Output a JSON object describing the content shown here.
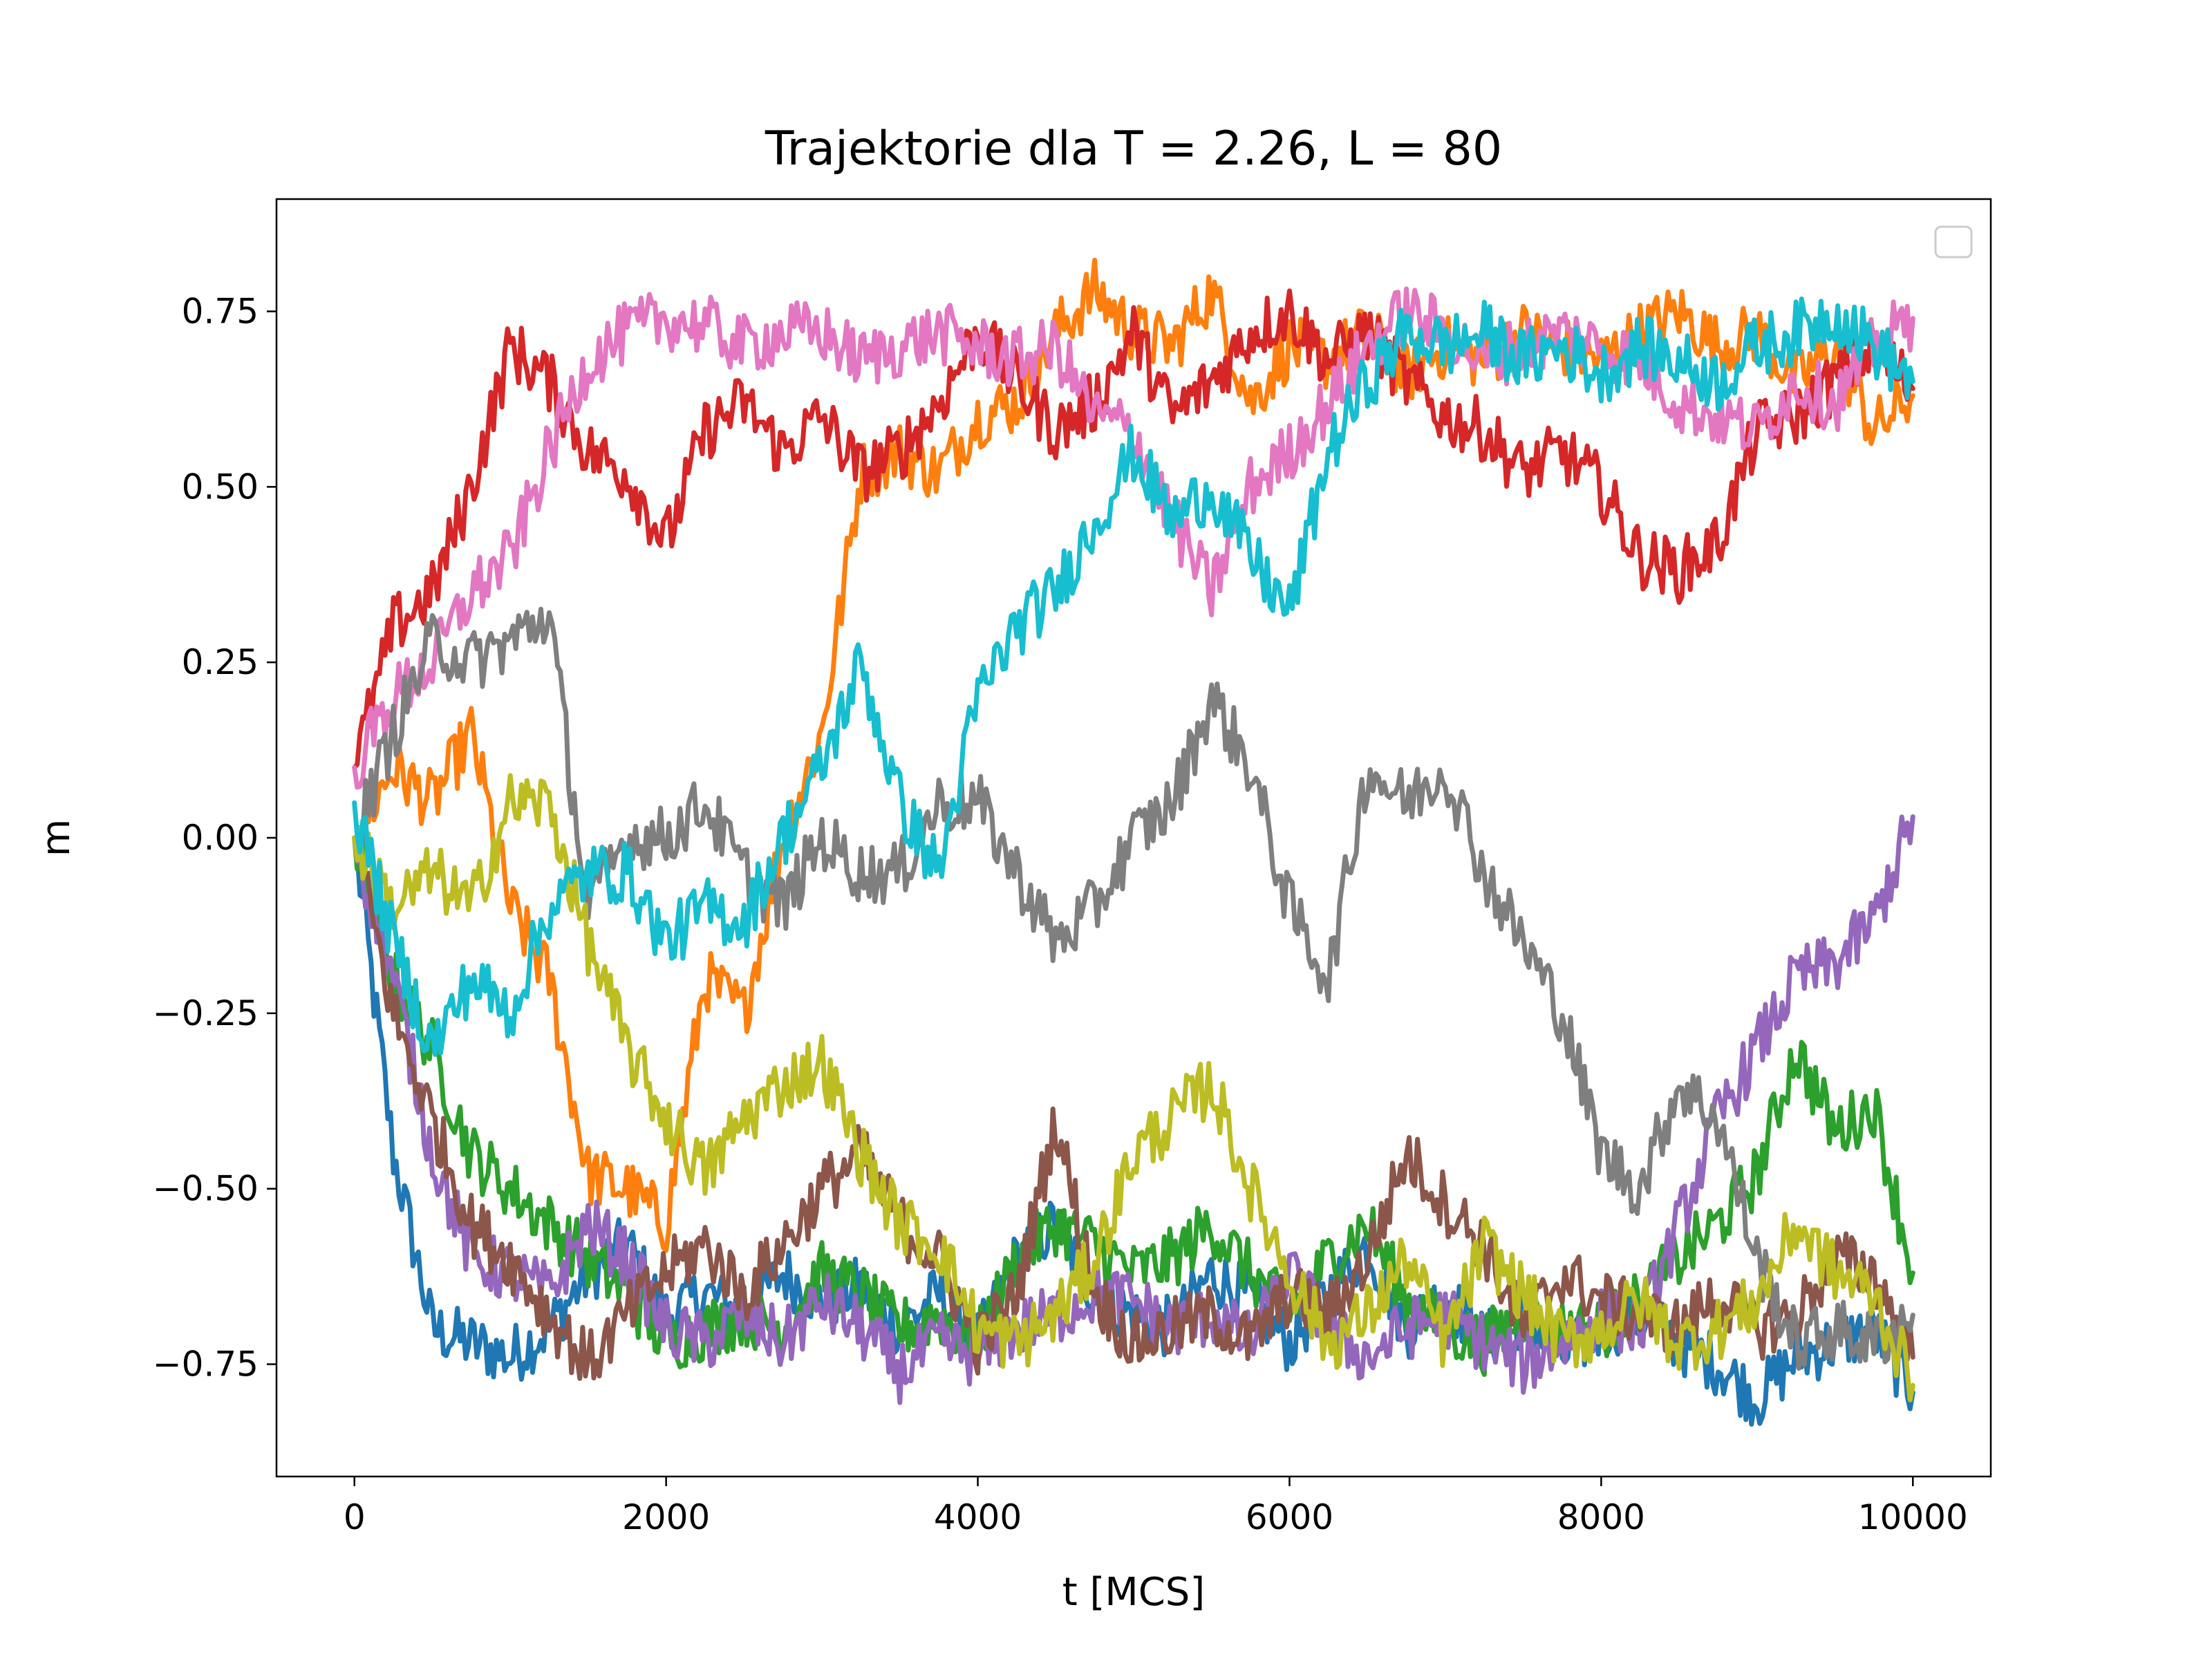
{
  "chart_data": {
    "type": "line",
    "title": "Trajektorie dla T = 2.26, L = 80",
    "xlabel": "t [MCS]",
    "ylabel": "m",
    "xlim": [
      -500,
      10500
    ],
    "ylim": [
      -0.91,
      0.91
    ],
    "xticks": [
      0,
      2000,
      4000,
      6000,
      8000,
      10000
    ],
    "xtick_labels": [
      "0",
      "2000",
      "4000",
      "6000",
      "8000",
      "10000"
    ],
    "yticks": [
      -0.75,
      -0.5,
      -0.25,
      0.0,
      0.25,
      0.5,
      0.75
    ],
    "ytick_labels": [
      "−0.75",
      "−0.50",
      "−0.25",
      "0.00",
      "0.25",
      "0.50",
      "0.75"
    ],
    "grid": false,
    "legend": "upper right (empty)",
    "x": [
      0,
      250,
      500,
      750,
      1000,
      1250,
      1500,
      1750,
      2000,
      2250,
      2500,
      2750,
      3000,
      3250,
      3500,
      3750,
      4000,
      4250,
      4500,
      4750,
      5000,
      5250,
      5500,
      5750,
      6000,
      6250,
      6500,
      6750,
      7000,
      7250,
      7500,
      7750,
      8000,
      8250,
      8500,
      8750,
      9000,
      9250,
      9500,
      9750,
      10000
    ],
    "series": [
      {
        "color": "#1f77b4",
        "values": [
          0.0,
          -0.45,
          -0.7,
          -0.72,
          -0.74,
          -0.7,
          -0.62,
          -0.58,
          -0.68,
          -0.65,
          -0.68,
          -0.62,
          -0.66,
          -0.64,
          -0.7,
          -0.65,
          -0.72,
          -0.6,
          -0.55,
          -0.65,
          -0.68,
          -0.7,
          -0.62,
          -0.66,
          -0.72,
          -0.65,
          -0.58,
          -0.7,
          -0.65,
          -0.72,
          -0.68,
          -0.74,
          -0.7,
          -0.68,
          -0.72,
          -0.75,
          -0.8,
          -0.74,
          -0.72,
          -0.7,
          -0.79
        ]
      },
      {
        "color": "#ff7f0e",
        "values": [
          0.0,
          0.1,
          0.05,
          0.15,
          -0.1,
          -0.2,
          -0.48,
          -0.5,
          -0.55,
          -0.2,
          -0.25,
          0.0,
          0.15,
          0.52,
          0.55,
          0.52,
          0.6,
          0.62,
          0.72,
          0.78,
          0.72,
          0.7,
          0.78,
          0.62,
          0.7,
          0.68,
          0.72,
          0.66,
          0.7,
          0.68,
          0.72,
          0.7,
          0.68,
          0.72,
          0.75,
          0.7,
          0.72,
          0.65,
          0.7,
          0.58,
          0.63
        ]
      },
      {
        "color": "#2ca02c",
        "values": [
          0.0,
          -0.2,
          -0.3,
          -0.45,
          -0.5,
          -0.55,
          -0.6,
          -0.65,
          -0.72,
          -0.7,
          -0.68,
          -0.7,
          -0.62,
          -0.65,
          -0.7,
          -0.68,
          -0.72,
          -0.6,
          -0.55,
          -0.58,
          -0.62,
          -0.6,
          -0.55,
          -0.62,
          -0.68,
          -0.6,
          -0.55,
          -0.66,
          -0.7,
          -0.72,
          -0.68,
          -0.7,
          -0.7,
          -0.66,
          -0.6,
          -0.55,
          -0.48,
          -0.3,
          -0.42,
          -0.38,
          -0.62
        ]
      },
      {
        "color": "#d62728",
        "values": [
          0.1,
          0.3,
          0.35,
          0.5,
          0.7,
          0.65,
          0.55,
          0.52,
          0.42,
          0.58,
          0.62,
          0.55,
          0.6,
          0.52,
          0.55,
          0.62,
          0.72,
          0.65,
          0.58,
          0.62,
          0.72,
          0.6,
          0.65,
          0.72,
          0.75,
          0.68,
          0.72,
          0.65,
          0.6,
          0.58,
          0.52,
          0.55,
          0.5,
          0.4,
          0.38,
          0.42,
          0.58,
          0.6,
          0.65,
          0.7,
          0.64
        ]
      },
      {
        "color": "#9467bd",
        "values": [
          0.0,
          -0.2,
          -0.45,
          -0.6,
          -0.62,
          -0.65,
          -0.55,
          -0.6,
          -0.7,
          -0.72,
          -0.68,
          -0.72,
          -0.66,
          -0.7,
          -0.76,
          -0.72,
          -0.74,
          -0.7,
          -0.68,
          -0.65,
          -0.66,
          -0.7,
          -0.68,
          -0.72,
          -0.62,
          -0.7,
          -0.74,
          -0.7,
          -0.68,
          -0.72,
          -0.75,
          -0.72,
          -0.68,
          -0.7,
          -0.55,
          -0.4,
          -0.3,
          -0.2,
          -0.18,
          -0.12,
          0.03
        ]
      },
      {
        "color": "#8c564b",
        "values": [
          0.0,
          -0.25,
          -0.4,
          -0.55,
          -0.6,
          -0.68,
          -0.75,
          -0.68,
          -0.62,
          -0.58,
          -0.65,
          -0.58,
          -0.5,
          -0.45,
          -0.55,
          -0.6,
          -0.72,
          -0.65,
          -0.4,
          -0.65,
          -0.72,
          -0.7,
          -0.68,
          -0.72,
          -0.65,
          -0.68,
          -0.6,
          -0.45,
          -0.52,
          -0.58,
          -0.7,
          -0.62,
          -0.66,
          -0.68,
          -0.7,
          -0.65,
          -0.7,
          -0.68,
          -0.6,
          -0.62,
          -0.74
        ]
      },
      {
        "color": "#e377c2",
        "values": [
          0.1,
          0.2,
          0.25,
          0.35,
          0.4,
          0.55,
          0.68,
          0.72,
          0.74,
          0.73,
          0.7,
          0.72,
          0.72,
          0.68,
          0.7,
          0.72,
          0.7,
          0.68,
          0.7,
          0.6,
          0.58,
          0.45,
          0.35,
          0.5,
          0.55,
          0.62,
          0.7,
          0.75,
          0.72,
          0.68,
          0.7,
          0.72,
          0.7,
          0.68,
          0.62,
          0.6,
          0.58,
          0.65,
          0.62,
          0.7,
          0.74
        ]
      },
      {
        "color": "#7f7f7f",
        "values": [
          0.0,
          0.15,
          0.28,
          0.25,
          0.28,
          0.32,
          -0.1,
          0.0,
          0.0,
          0.05,
          -0.05,
          -0.1,
          0.0,
          -0.05,
          -0.05,
          0.05,
          0.05,
          -0.05,
          -0.15,
          -0.1,
          0.0,
          0.05,
          0.2,
          0.1,
          -0.1,
          -0.2,
          0.1,
          0.05,
          0.1,
          -0.05,
          -0.15,
          -0.25,
          -0.45,
          -0.5,
          -0.35,
          -0.4,
          -0.6,
          -0.72,
          -0.7,
          -0.72,
          -0.68
        ]
      },
      {
        "color": "#bcbd22",
        "values": [
          0.0,
          -0.1,
          -0.05,
          -0.1,
          0.05,
          0.05,
          -0.15,
          -0.3,
          -0.4,
          -0.48,
          -0.4,
          -0.35,
          -0.32,
          -0.45,
          -0.55,
          -0.58,
          -0.7,
          -0.72,
          -0.68,
          -0.6,
          -0.45,
          -0.4,
          -0.35,
          -0.5,
          -0.62,
          -0.72,
          -0.68,
          -0.6,
          -0.72,
          -0.58,
          -0.65,
          -0.72,
          -0.7,
          -0.66,
          -0.72,
          -0.7,
          -0.66,
          -0.55,
          -0.62,
          -0.65,
          -0.78
        ]
      },
      {
        "color": "#17becf",
        "values": [
          0.05,
          -0.15,
          -0.3,
          -0.2,
          -0.25,
          -0.1,
          -0.05,
          -0.05,
          -0.15,
          -0.1,
          -0.12,
          0.0,
          0.1,
          0.25,
          0.05,
          -0.05,
          0.2,
          0.3,
          0.35,
          0.45,
          0.55,
          0.45,
          0.5,
          0.4,
          0.32,
          0.55,
          0.65,
          0.72,
          0.7,
          0.72,
          0.68,
          0.7,
          0.66,
          0.7,
          0.68,
          0.65,
          0.7,
          0.72,
          0.75,
          0.7,
          0.65
        ]
      }
    ]
  }
}
